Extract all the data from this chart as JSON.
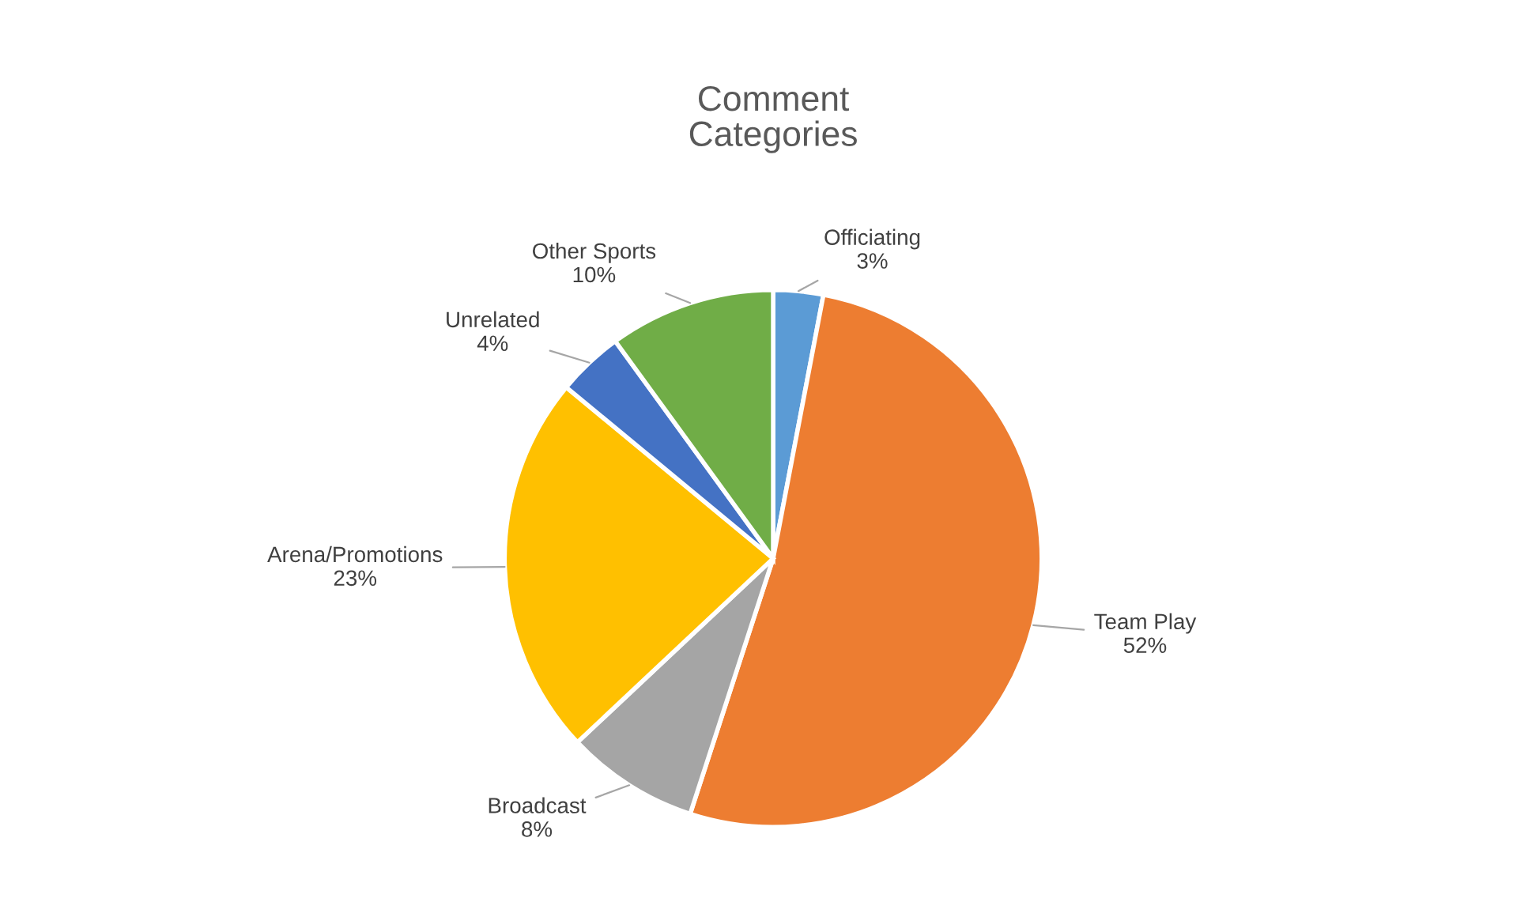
{
  "chart_data": {
    "type": "pie",
    "title": "Comment Categories",
    "categories": [
      "Officiating",
      "Team Play",
      "Broadcast",
      "Arena/Promotions",
      "Unrelated",
      "Other Sports"
    ],
    "values": [
      3,
      52,
      8,
      23,
      4,
      10
    ],
    "value_labels": [
      "3%",
      "52%",
      "8%",
      "23%",
      "4%",
      "10%"
    ],
    "colors": [
      "#5b9bd5",
      "#ed7d31",
      "#a5a5a5",
      "#ffc000",
      "#4472c4",
      "#70ad47"
    ],
    "legend": false
  }
}
